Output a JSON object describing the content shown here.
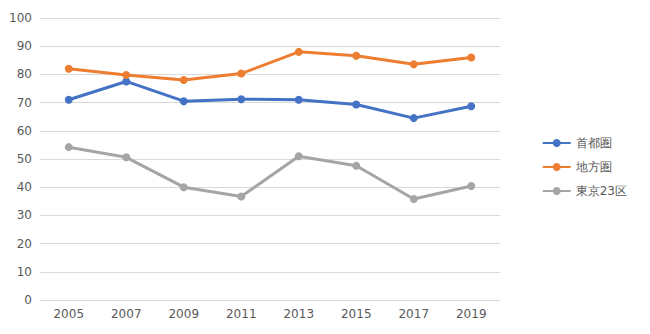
{
  "chart_data": {
    "type": "line",
    "categories": [
      "2005",
      "2007",
      "2009",
      "2011",
      "2013",
      "2015",
      "2017",
      "2019"
    ],
    "series": [
      {
        "name": "首都圏",
        "color": "#4472c4",
        "values": [
          71,
          77.5,
          70.5,
          71.2,
          71,
          69.3,
          64.5,
          68.7
        ]
      },
      {
        "name": "地方圏",
        "color": "#ed7d31",
        "values": [
          82,
          79.8,
          78,
          80.3,
          88,
          86.6,
          83.6,
          86
        ]
      },
      {
        "name": "東京23区",
        "color": "#a5a5a5",
        "values": [
          54.2,
          50.6,
          40,
          36.7,
          51,
          47.6,
          35.8,
          40.4
        ]
      }
    ],
    "ylim": [
      0,
      100
    ],
    "yticks": [
      0,
      10,
      20,
      30,
      40,
      50,
      60,
      70,
      80,
      90,
      100
    ],
    "grid": true,
    "legend": "right",
    "marker": "circle",
    "line_style": "solid"
  }
}
